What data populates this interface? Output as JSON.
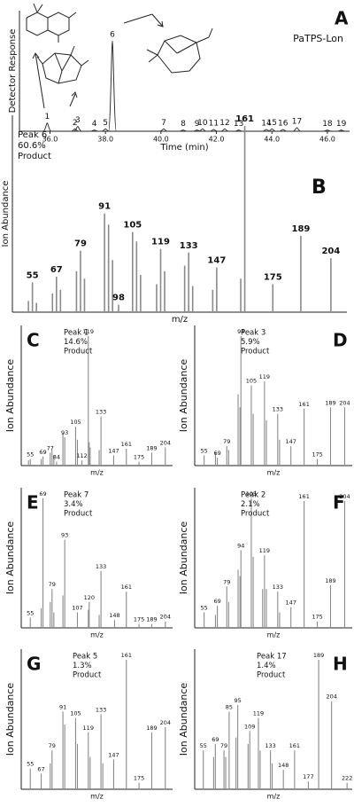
{
  "chart_data": [
    {
      "type": "line",
      "title": "A",
      "subtitle": "PaTPS-Lon",
      "xlabel": "Time (min)",
      "ylabel": "Detector Response",
      "x": [
        35.9,
        36.9,
        37.0,
        37.6,
        38.0,
        38.25,
        40.1,
        40.8,
        41.3,
        41.5,
        41.9,
        42.3,
        42.8,
        43.8,
        44.0,
        44.4,
        44.9,
        46.0,
        46.5
      ],
      "values": [
        7,
        2,
        4,
        1,
        2,
        75,
        2,
        1,
        1,
        2,
        1.5,
        2,
        1,
        1.5,
        2,
        1.5,
        3,
        1,
        1
      ],
      "peak_labels": [
        1,
        2,
        3,
        4,
        5,
        6,
        7,
        8,
        9,
        10,
        11,
        12,
        13,
        14,
        15,
        16,
        17,
        18,
        19
      ],
      "xlim": [
        34.9,
        46.8
      ],
      "xticks": [
        {
          "value": 36,
          "label": "36.0"
        },
        {
          "value": 38,
          "label": "38.0"
        },
        {
          "value": 40,
          "label": "40.0"
        },
        {
          "value": 42,
          "label": "42.0"
        },
        {
          "value": 44,
          "label": "44.0"
        },
        {
          "value": 46,
          "label": "46.0"
        }
      ],
      "ylim": [
        0,
        100
      ],
      "color": "#333333"
    },
    {
      "type": "bar",
      "title": "B",
      "annotation": [
        "Peak 6",
        "60.6%",
        "Product"
      ],
      "xlabel": "m/z",
      "ylabel": "Ion Abundance",
      "x": [
        53,
        55,
        57,
        65,
        67,
        69,
        77,
        79,
        81,
        91,
        93,
        95,
        98,
        105,
        107,
        109,
        117,
        119,
        121,
        131,
        133,
        135,
        145,
        147,
        159,
        161,
        175,
        189,
        204
      ],
      "values": [
        6,
        16,
        5,
        10,
        19,
        12,
        22,
        33,
        18,
        53,
        47,
        28,
        4,
        43,
        38,
        20,
        15,
        34,
        22,
        25,
        32,
        14,
        12,
        24,
        18,
        100,
        15,
        41,
        29
      ],
      "labels": [
        null,
        55,
        null,
        null,
        67,
        null,
        null,
        79,
        null,
        91,
        null,
        null,
        98,
        105,
        null,
        null,
        null,
        119,
        null,
        null,
        133,
        null,
        null,
        147,
        null,
        161,
        175,
        189,
        204
      ],
      "xlim": [
        45,
        212
      ],
      "ylim": [
        0,
        100
      ],
      "color": "#8a8a8a"
    },
    {
      "type": "bar",
      "title": "C",
      "annotation": [
        "Peak 1",
        "14.6%",
        "Product"
      ],
      "xlabel": "m/z",
      "ylabel": "Ion Abundance",
      "x": [
        53,
        55,
        67,
        69,
        77,
        79,
        81,
        84,
        91,
        93,
        105,
        107,
        112,
        119,
        120,
        121,
        131,
        133,
        147,
        161,
        175,
        189,
        204
      ],
      "values": [
        4,
        5,
        5,
        7,
        10,
        12,
        8,
        3,
        25,
        22,
        30,
        20,
        4,
        100,
        18,
        14,
        12,
        38,
        8,
        13,
        3,
        10,
        14
      ],
      "labels": [
        null,
        55,
        null,
        69,
        77,
        null,
        null,
        84,
        null,
        93,
        105,
        null,
        112,
        119,
        null,
        null,
        null,
        133,
        147,
        161,
        175,
        189,
        204
      ],
      "xlim": [
        45,
        212
      ],
      "ylim": [
        0,
        100
      ],
      "color": "#8a8a8a"
    },
    {
      "type": "bar",
      "title": "D",
      "annotation": [
        "Peak 3",
        "5.9%",
        "Product"
      ],
      "xlabel": "m/z",
      "ylabel": "Ion Abundance",
      "x": [
        55,
        67,
        69,
        79,
        81,
        91,
        93,
        94,
        105,
        107,
        119,
        121,
        133,
        135,
        147,
        161,
        175,
        189,
        204
      ],
      "values": [
        8,
        10,
        6,
        15,
        12,
        55,
        45,
        100,
        62,
        40,
        65,
        35,
        40,
        20,
        15,
        44,
        5,
        45,
        45
      ],
      "labels": [
        55,
        null,
        69,
        79,
        null,
        null,
        null,
        94,
        105,
        null,
        119,
        null,
        133,
        null,
        147,
        161,
        175,
        189,
        204
      ],
      "xlim": [
        45,
        212
      ],
      "ylim": [
        0,
        100
      ],
      "color": "#8a8a8a"
    },
    {
      "type": "bar",
      "title": "E",
      "annotation": [
        "Peak 7",
        "3.4%",
        "Product"
      ],
      "xlabel": "m/z",
      "ylabel": "Ion Abundance",
      "x": [
        55,
        67,
        69,
        77,
        79,
        81,
        91,
        93,
        107,
        119,
        120,
        131,
        133,
        148,
        161,
        175,
        189,
        204
      ],
      "values": [
        8,
        15,
        100,
        20,
        30,
        12,
        25,
        68,
        12,
        14,
        20,
        10,
        44,
        6,
        28,
        3,
        3,
        5
      ],
      "labels": [
        55,
        null,
        69,
        null,
        79,
        null,
        null,
        93,
        107,
        null,
        120,
        null,
        133,
        148,
        161,
        175,
        189,
        204
      ],
      "xlim": [
        45,
        212
      ],
      "ylim": [
        0,
        100
      ],
      "color": "#8a8a8a"
    },
    {
      "type": "bar",
      "title": "F",
      "annotation": [
        "Peak 2",
        "2.1%",
        "Product"
      ],
      "xlabel": "m/z",
      "ylabel": "Ion Abundance",
      "x": [
        55,
        67,
        69,
        79,
        81,
        91,
        93,
        94,
        105,
        107,
        117,
        119,
        121,
        133,
        135,
        147,
        161,
        175,
        189,
        204
      ],
      "values": [
        12,
        10,
        17,
        32,
        20,
        45,
        40,
        60,
        100,
        55,
        30,
        56,
        30,
        28,
        12,
        16,
        98,
        5,
        33,
        98
      ],
      "labels": [
        55,
        null,
        69,
        79,
        null,
        null,
        null,
        94,
        105,
        null,
        null,
        119,
        null,
        133,
        null,
        147,
        161,
        175,
        189,
        204
      ],
      "xlim": [
        45,
        212
      ],
      "ylim": [
        0,
        100
      ],
      "color": "#8a8a8a"
    },
    {
      "type": "bar",
      "title": "G",
      "annotation": [
        "Peak 5",
        "1.3%",
        "Product"
      ],
      "xlabel": "m/z",
      "ylabel": "Ion Abundance",
      "x": [
        55,
        67,
        77,
        79,
        91,
        93,
        105,
        107,
        119,
        121,
        133,
        135,
        147,
        161,
        175,
        189,
        204
      ],
      "values": [
        16,
        12,
        20,
        30,
        60,
        50,
        55,
        35,
        44,
        25,
        58,
        20,
        23,
        100,
        5,
        44,
        48
      ],
      "labels": [
        55,
        67,
        null,
        79,
        91,
        null,
        105,
        null,
        119,
        null,
        133,
        null,
        147,
        161,
        175,
        189,
        204
      ],
      "xlim": [
        45,
        212
      ],
      "ylim": [
        0,
        100
      ],
      "color": "#8a8a8a"
    },
    {
      "type": "bar",
      "title": "H",
      "annotation": [
        "Peak 17",
        "1.4%",
        "Product"
      ],
      "xlabel": "m/z",
      "ylabel": "Ion Abundance",
      "x": [
        55,
        67,
        69,
        79,
        81,
        85,
        93,
        95,
        107,
        109,
        119,
        121,
        133,
        135,
        148,
        161,
        177,
        189,
        204,
        222
      ],
      "values": [
        30,
        25,
        35,
        30,
        25,
        60,
        40,
        65,
        35,
        45,
        55,
        30,
        30,
        20,
        15,
        30,
        6,
        100,
        68,
        5
      ],
      "labels": [
        55,
        null,
        69,
        79,
        null,
        85,
        null,
        95,
        null,
        109,
        119,
        null,
        133,
        null,
        148,
        161,
        177,
        189,
        204,
        222
      ],
      "xlim": [
        45,
        228
      ],
      "ylim": [
        0,
        100
      ],
      "color": "#8a8a8a"
    }
  ]
}
